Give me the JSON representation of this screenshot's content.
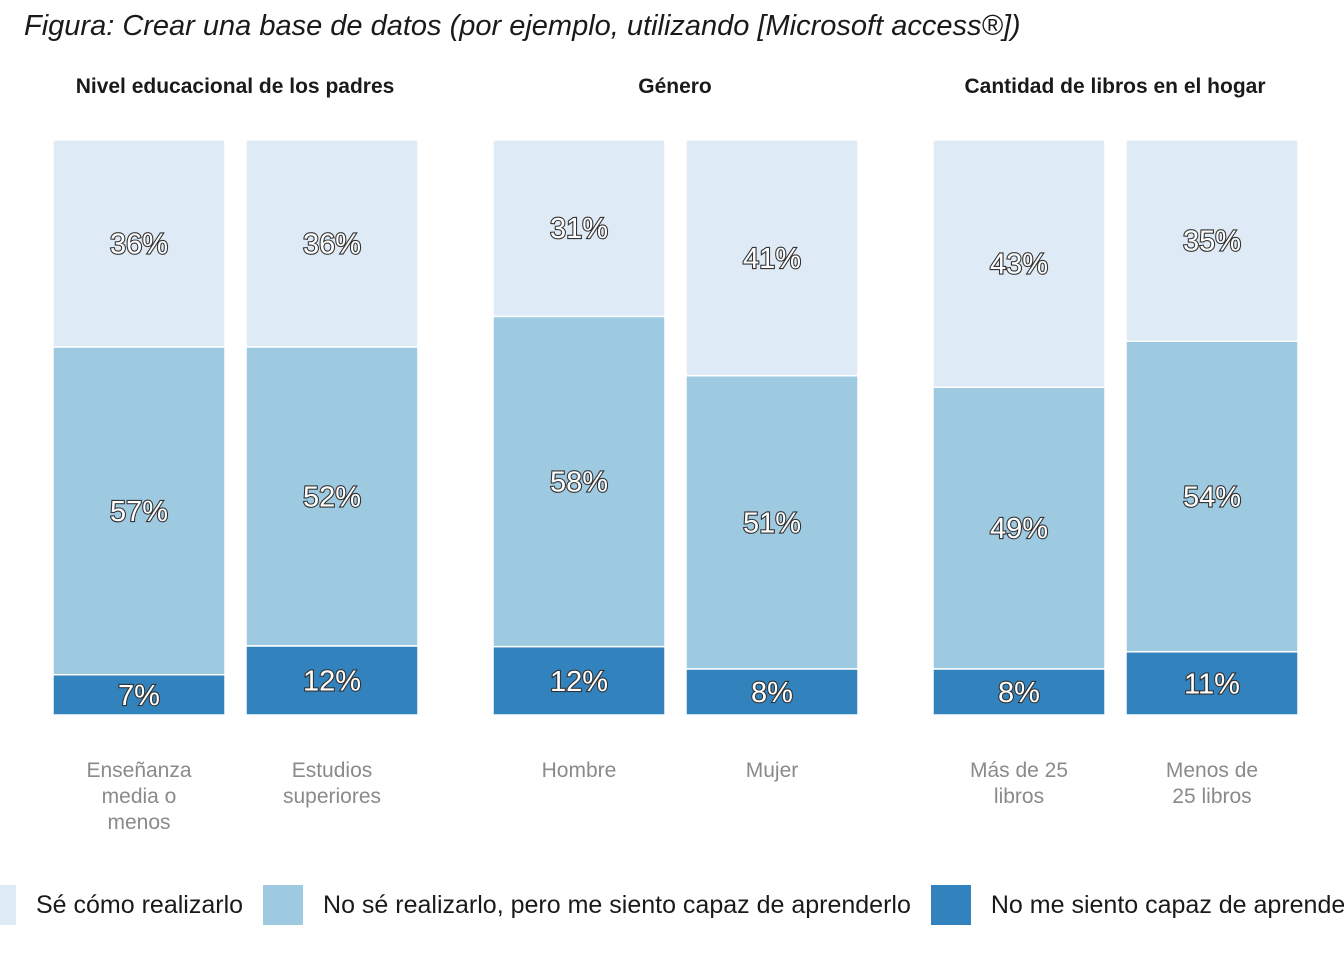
{
  "figure_title": "Figura: Crear una base de datos (por ejemplo, utilizando [Microsoft access®])",
  "colors": {
    "se_como": "#deeaf6",
    "capaz_aprender": "#9ecae1",
    "no_capaz": "#3182bd"
  },
  "chart_data": {
    "type": "bar",
    "stacked": true,
    "percent_stacked": true,
    "legend_position": "bottom",
    "legend": [
      "Sé cómo realizarlo",
      "No sé realizarlo, pero me siento capaz de aprenderlo",
      "No me siento capaz de aprenderlo"
    ],
    "panels": [
      {
        "title": "Nivel educacional de los padres",
        "categories": [
          "Enseñanza media o menos",
          "Estudios superiores"
        ],
        "category_lines": [
          [
            "Enseñanza",
            "media o",
            "menos"
          ],
          [
            "Estudios",
            "superiores"
          ]
        ],
        "series": [
          {
            "name": "Sé cómo realizarlo",
            "values": [
              36,
              36
            ]
          },
          {
            "name": "No sé realizarlo, pero me siento capaz de aprenderlo",
            "values": [
              57,
              52
            ]
          },
          {
            "name": "No me siento capaz de aprenderlo",
            "values": [
              7,
              12
            ]
          }
        ]
      },
      {
        "title": "Género",
        "categories": [
          "Hombre",
          "Mujer"
        ],
        "category_lines": [
          [
            "Hombre"
          ],
          [
            "Mujer"
          ]
        ],
        "series": [
          {
            "name": "Sé cómo realizarlo",
            "values": [
              31,
              41
            ]
          },
          {
            "name": "No sé realizarlo, pero me siento capaz de aprenderlo",
            "values": [
              58,
              51
            ]
          },
          {
            "name": "No me siento capaz de aprenderlo",
            "values": [
              12,
              8
            ]
          }
        ]
      },
      {
        "title": "Cantidad de libros en el hogar",
        "categories": [
          "Más de 25 libros",
          "Menos de 25 libros"
        ],
        "category_lines": [
          [
            "Más de 25",
            "libros"
          ],
          [
            "Menos de",
            "25 libros"
          ]
        ],
        "series": [
          {
            "name": "Sé cómo realizarlo",
            "values": [
              43,
              35
            ]
          },
          {
            "name": "No sé realizarlo, pero me siento capaz de aprenderlo",
            "values": [
              49,
              54
            ]
          },
          {
            "name": "No me siento capaz de aprenderlo",
            "values": [
              8,
              11
            ]
          }
        ]
      }
    ]
  }
}
